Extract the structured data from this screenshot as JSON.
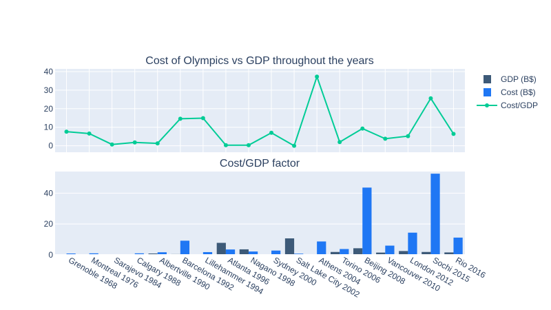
{
  "colors": {
    "gdp": "#3d5a78",
    "cost": "#1f77f4",
    "ratio": "#00cc96",
    "plot_bg": "#e5ecf6",
    "grid": "#ffffff",
    "text": "#2a3f5f"
  },
  "chart_data": [
    {
      "type": "line",
      "title": "Cost of Olympics vs GDP throughout the years",
      "categories": [
        "Grenoble 1968",
        "Montreal  1976",
        "Sarajevo 1984",
        "Calgary 1988",
        "Albertville 1990",
        "Barcelona 1992",
        "Lillehammer 1994",
        "Atlanta 1996",
        "Nagano 1998",
        "Sydney 2000",
        "Salt Lake City 2002",
        "Athens 2004",
        "Torino 2006",
        "Beijing 2008",
        "Vancouver 2010",
        "London 2012",
        "Sochi 2015",
        "Rio 2016"
      ],
      "series": [
        {
          "name": "Cost/GDP",
          "values": [
            7.6,
            6.6,
            0.7,
            1.8,
            1.3,
            14.6,
            14.9,
            0.3,
            0.3,
            7.0,
            0.0,
            37.3,
            2.0,
            9.3,
            3.8,
            5.2,
            25.6,
            6.4
          ]
        }
      ],
      "ylim": [
        -3.5,
        41.5
      ],
      "yticks": [
        0,
        10,
        20,
        30,
        40
      ],
      "grid": true,
      "legend_position": "top-right"
    },
    {
      "type": "bar",
      "title": "Cost/GDP factor",
      "categories": [
        "Grenoble 1968",
        "Montreal  1976",
        "Sarajevo 1984",
        "Calgary 1988",
        "Albertville 1990",
        "Barcelona 1992",
        "Lillehammer 1994",
        "Atlanta 1996",
        "Nagano 1998",
        "Sydney 2000",
        "Salt Lake City 2002",
        "Athens 2004",
        "Torino 2006",
        "Beijing 2008",
        "Vancouver 2010",
        "London 2012",
        "Sochi 2015",
        "Rio 2016"
      ],
      "series": [
        {
          "name": "GDP (B$)",
          "values": [
            0.1,
            0.1,
            0.1,
            0.3,
            0.9,
            0.5,
            0.1,
            7.8,
            3.6,
            0.3,
            10.7,
            0.1,
            1.9,
            4.3,
            1.5,
            2.5,
            1.9,
            1.6
          ]
        },
        {
          "name": "Cost (B$)",
          "values": [
            0.9,
            1.0,
            0.1,
            1.0,
            1.7,
            9.2,
            1.8,
            3.5,
            2.2,
            2.8,
            0.8,
            8.7,
            3.8,
            43.6,
            6.0,
            14.4,
            52.6,
            11.2
          ]
        }
      ],
      "ylim": [
        0,
        54
      ],
      "yticks": [
        0,
        20,
        40
      ],
      "grid": true
    }
  ]
}
